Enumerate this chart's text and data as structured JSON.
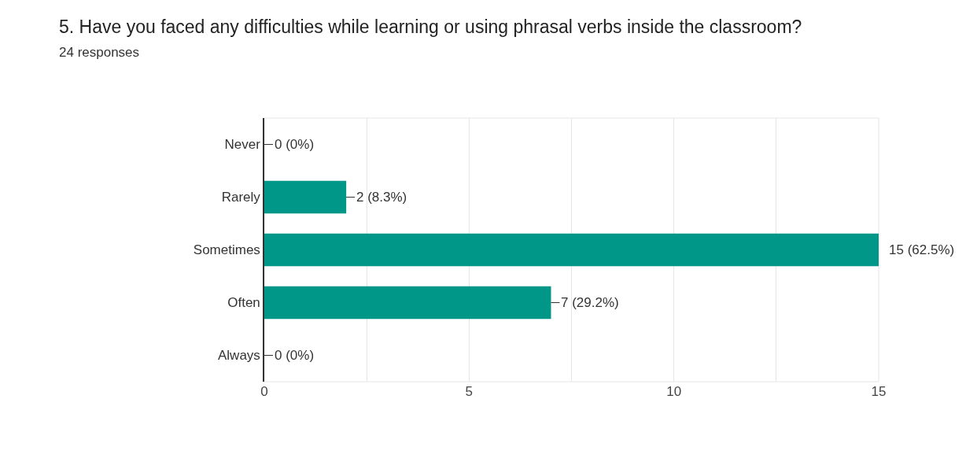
{
  "chart_data": {
    "type": "bar",
    "orientation": "horizontal",
    "title": "5. Have you faced any difficulties while learning or using phrasal verbs inside the classroom?",
    "subtitle": "24 responses",
    "categories": [
      "Never",
      "Rarely",
      "Sometimes",
      "Often",
      "Always"
    ],
    "values": [
      0,
      2,
      15,
      7,
      0
    ],
    "value_labels": [
      "0 (0%)",
      "2 (8.3%)",
      "15 (62.5%)",
      "7 (29.2%)",
      "0 (0%)"
    ],
    "color": "#009688",
    "xlim": [
      0,
      15
    ],
    "xticks": [
      0,
      {
        "value": 2.5,
        "label": null
      },
      5,
      {
        "value": 7.5,
        "label": null
      },
      10,
      {
        "value": 12.5,
        "label": null
      },
      15
    ],
    "grid": "x"
  }
}
